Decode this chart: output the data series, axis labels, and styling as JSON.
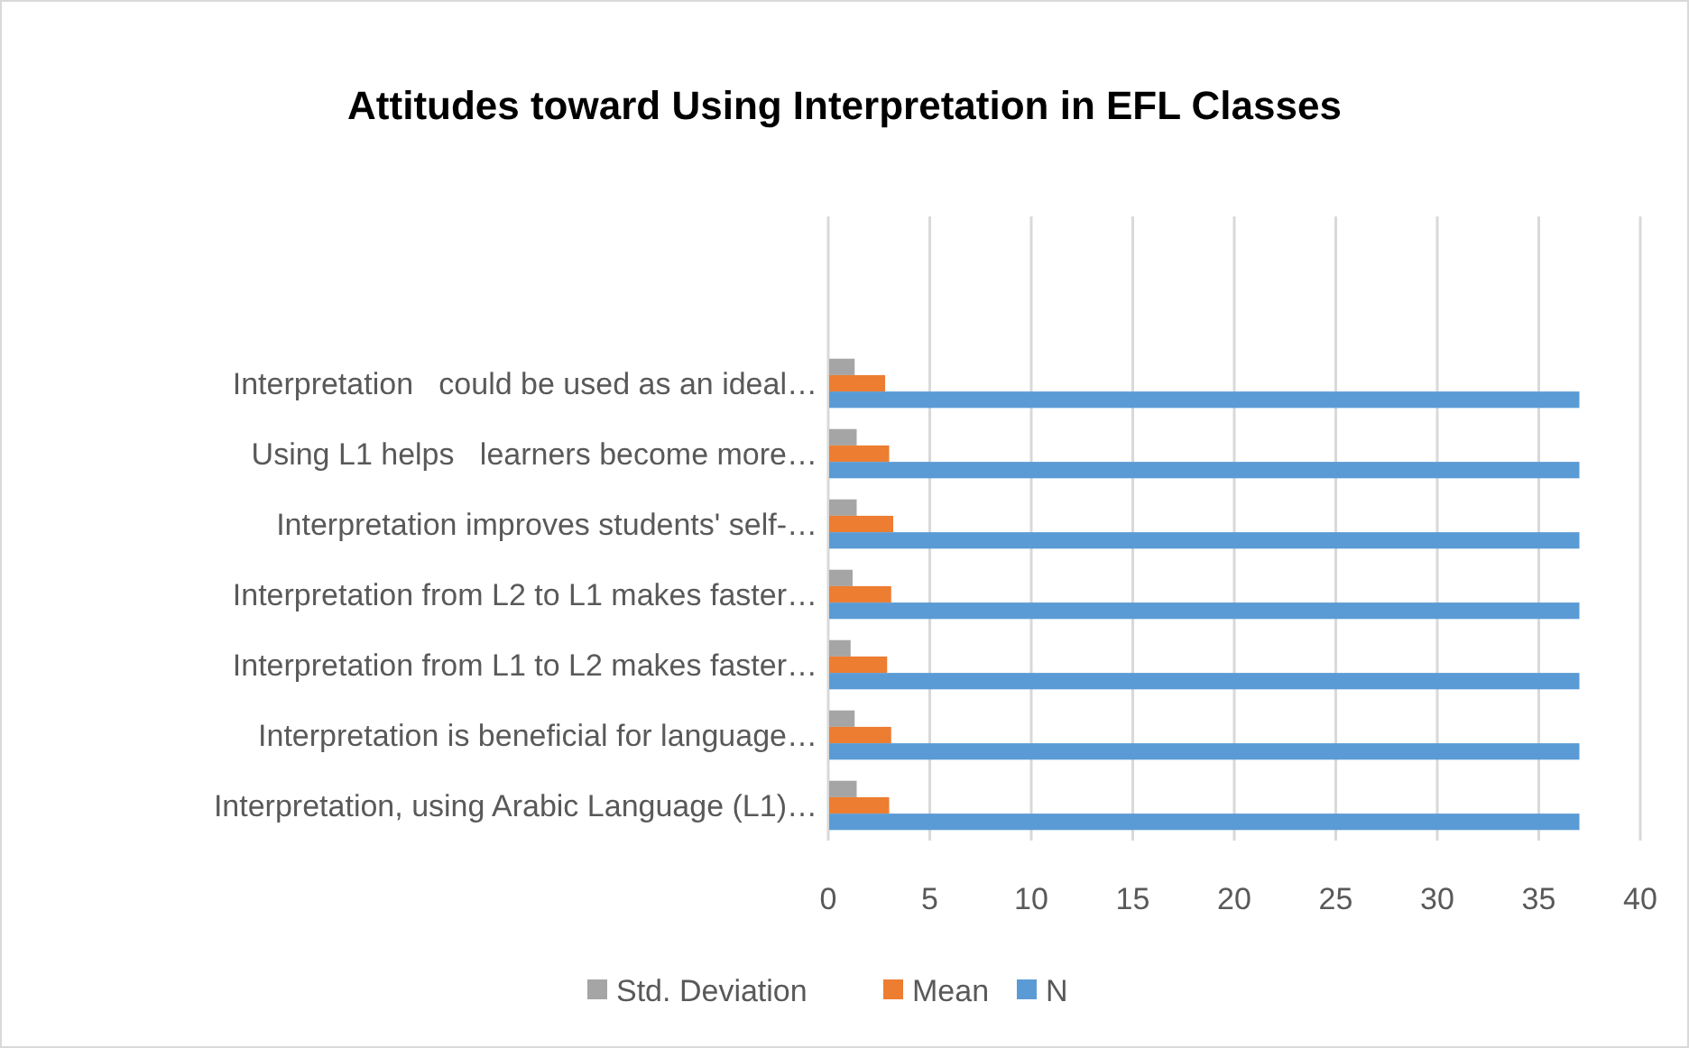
{
  "chart_data": {
    "type": "bar",
    "orientation": "horizontal",
    "title": "Attitudes toward Using Interpretation in EFL Classes",
    "categories": [
      "Interpretation   could be used as an ideal…",
      "Using L1 helps   learners become more…",
      "Interpretation improves students' self-…",
      "Interpretation from L2 to L1 makes faster…",
      "Interpretation from L1 to L2 makes faster…",
      "Interpretation is beneficial for language…",
      "Interpretation, using Arabic Language (L1)…"
    ],
    "series": [
      {
        "name": "Std. Deviation",
        "color": "#a5a5a5",
        "values": [
          1.3,
          1.4,
          1.4,
          1.2,
          1.1,
          1.3,
          1.4
        ]
      },
      {
        "name": "Mean",
        "color": "#ed7d31",
        "values": [
          2.8,
          3.0,
          3.2,
          3.1,
          2.9,
          3.1,
          3.0
        ]
      },
      {
        "name": "N",
        "color": "#5b9bd5",
        "values": [
          37,
          37,
          37,
          37,
          37,
          37,
          37
        ]
      }
    ],
    "xlim": [
      0,
      40
    ],
    "xticks": [
      0,
      5,
      10,
      15,
      20,
      25,
      30,
      35,
      40
    ],
    "grid": "x",
    "legend": "bottom"
  }
}
